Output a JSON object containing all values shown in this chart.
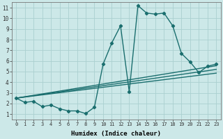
{
  "xlabel": "Humidex (Indice chaleur)",
  "background_color": "#cce8e8",
  "grid_color": "#aad0d0",
  "line_color": "#1a6e6e",
  "xlim": [
    -0.5,
    23.5
  ],
  "ylim": [
    0.5,
    11.5
  ],
  "xticks": [
    0,
    1,
    2,
    3,
    4,
    5,
    6,
    7,
    8,
    9,
    10,
    11,
    12,
    13,
    14,
    15,
    16,
    17,
    18,
    19,
    20,
    21,
    22,
    23
  ],
  "yticks": [
    1,
    2,
    3,
    4,
    5,
    6,
    7,
    8,
    9,
    10,
    11
  ],
  "main_curve": {
    "x": [
      0,
      1,
      2,
      3,
      4,
      5,
      6,
      7,
      8,
      9,
      10,
      11,
      12,
      13,
      14,
      15,
      16,
      17,
      18,
      19,
      20,
      21,
      22,
      23
    ],
    "y": [
      2.5,
      2.1,
      2.2,
      1.7,
      1.85,
      1.5,
      1.3,
      1.3,
      1.05,
      1.65,
      5.7,
      7.7,
      9.3,
      3.1,
      11.2,
      10.5,
      10.4,
      10.5,
      9.3,
      6.7,
      5.9,
      4.9,
      5.5,
      5.7
    ]
  },
  "trend_lines": [
    {
      "x": [
        0,
        23
      ],
      "y": [
        2.5,
        5.55
      ]
    },
    {
      "x": [
        0,
        23
      ],
      "y": [
        2.5,
        5.2
      ]
    },
    {
      "x": [
        0,
        23
      ],
      "y": [
        2.5,
        4.85
      ]
    }
  ],
  "marker": "D",
  "markersize": 2.2,
  "linewidth": 1.0,
  "tick_fontsize_x": 5.0,
  "tick_fontsize_y": 5.5,
  "xlabel_fontsize": 6.5
}
